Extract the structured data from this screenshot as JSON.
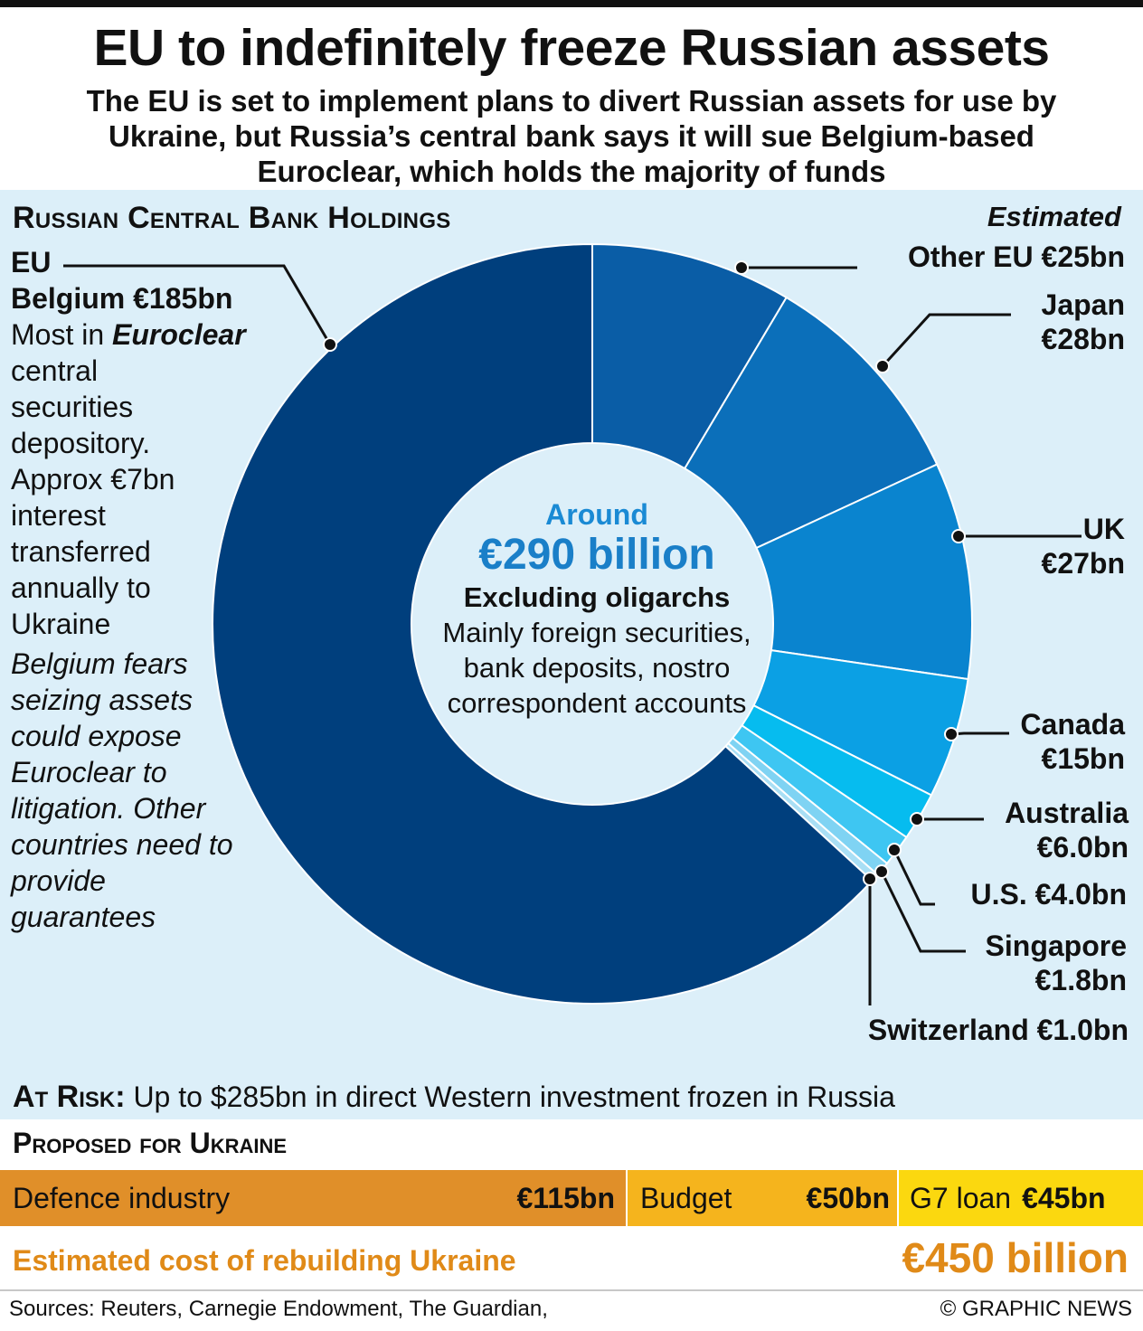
{
  "header": {
    "title": "EU to indefinitely freeze Russian assets",
    "subtitle": "The EU is set to implement plans to divert Russian assets for use by Ukraine, but Russia’s central bank says it will sue Belgium-based Euroclear, which holds the majority of funds"
  },
  "section": {
    "heading": "Russian Central Bank Holdings",
    "estimated": "Estimated"
  },
  "eu_note": {
    "region": "EU",
    "belgium": "Belgium €185bn",
    "line1_pre": "Most in ",
    "line1_em": "Euroclear",
    "line2": "central securities depository. Approx €7bn interest transferred annually to Ukraine",
    "fears": "Belgium fears seizing assets could expose Euroclear to litigation. Other countries need to provide guarantees"
  },
  "center": {
    "around": "Around",
    "total": "€290 billion",
    "excluding": "Excluding oligarchs",
    "desc": "Mainly foreign securities, bank deposits, nostro correspondent accounts"
  },
  "chart_data": {
    "type": "pie",
    "variant": "donut",
    "title": "Russian Central Bank Holdings",
    "note": "Estimated",
    "unit": "€bn",
    "slices": [
      {
        "name": "Other EU",
        "value": 25,
        "label": "Other EU €25bn",
        "color": "#0a5da6"
      },
      {
        "name": "Japan",
        "value": 28,
        "label": "Japan €28bn",
        "color": "#0b6fba"
      },
      {
        "name": "UK",
        "value": 27,
        "label": "UK €27bn",
        "color": "#0a84cf"
      },
      {
        "name": "Canada",
        "value": 15,
        "label": "Canada €15bn",
        "color": "#0ba0e4"
      },
      {
        "name": "Australia",
        "value": 6.0,
        "label": "Australia €6.0bn",
        "color": "#06bcef"
      },
      {
        "name": "U.S.",
        "value": 4.0,
        "label": "U.S. €4.0bn",
        "color": "#3ec6f2"
      },
      {
        "name": "Singapore",
        "value": 1.8,
        "label": "Singapore €1.8bn",
        "color": "#7fd3f3"
      },
      {
        "name": "Switzerland",
        "value": 1.0,
        "label": "Switzerland €1.0bn",
        "color": "#a9dff5"
      },
      {
        "name": "Belgium",
        "value": 185,
        "label": "Belgium €185bn",
        "color": "#003f7d"
      }
    ]
  },
  "labels": {
    "other_eu": "Other EU €25bn",
    "japan_name": "Japan",
    "japan_value": "€28bn",
    "uk_name": "UK",
    "uk_value": "€27bn",
    "canada_name": "Canada",
    "canada_value": "€15bn",
    "australia_name": "Australia",
    "australia_value": "€6.0bn",
    "us": "U.S. €4.0bn",
    "singapore_name": "Singapore",
    "singapore_value": "€1.8bn",
    "switzerland": "Switzerland €1.0bn"
  },
  "at_risk": {
    "label": "At Risk:",
    "text": " Up to $285bn in direct Western investment frozen in Russia"
  },
  "proposed": {
    "heading": "Proposed for Ukraine",
    "items": [
      {
        "label": "Defence industry",
        "value": "€115bn",
        "amount": 115,
        "color": "#e08f29"
      },
      {
        "label": "Budget",
        "value": "€50bn",
        "amount": 50,
        "color": "#f5b41d"
      },
      {
        "label": "G7 loan",
        "value": "€45bn",
        "amount": 45,
        "color": "#fbd80f"
      }
    ]
  },
  "rebuild": {
    "label": "Estimated cost of rebuilding Ukraine",
    "value": "€450 billion"
  },
  "footer": {
    "sources": "Sources: Reuters, Carnegie Endowment, The Guardian,",
    "credit": "© GRAPHIC NEWS"
  }
}
